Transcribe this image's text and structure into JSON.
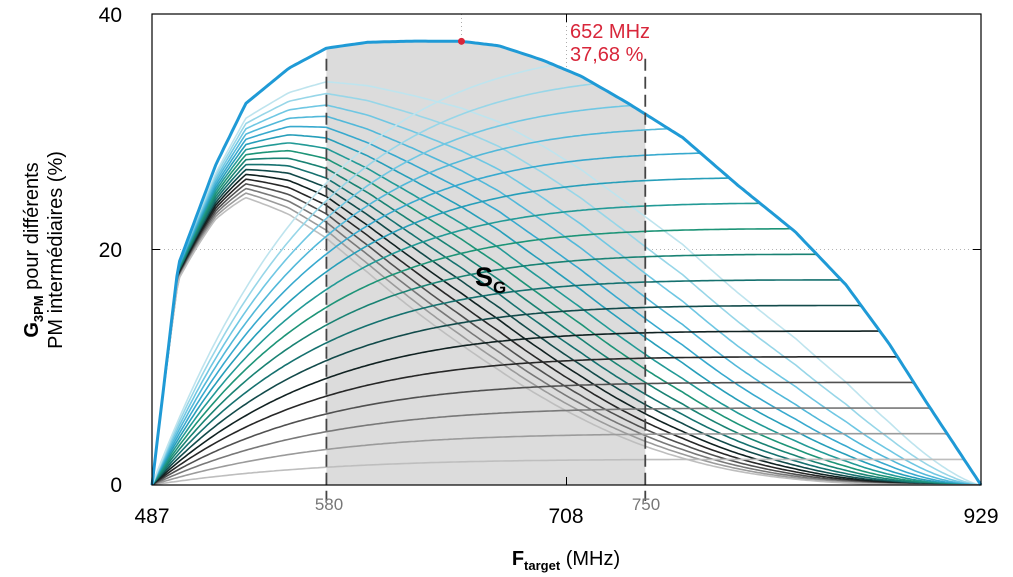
{
  "chart_data": {
    "type": "line",
    "ylabel": {
      "main": "G",
      "sub": "3PM",
      "line1_rest": " pour différents",
      "line2": "PM intermédiaires (%)"
    },
    "xlabel": {
      "main": "F",
      "sub": "target",
      "rest": " (MHz)"
    },
    "xlim": [
      487,
      929
    ],
    "ylim": [
      0,
      40
    ],
    "xticks": [
      "487",
      "708",
      "929"
    ],
    "xticks_values": [
      487,
      708,
      929
    ],
    "xticks_secondary": [
      "580",
      "750"
    ],
    "xticks_secondary_values": [
      580,
      750
    ],
    "yticks": [
      "0",
      "20",
      "40"
    ],
    "yticks_values": [
      0,
      20,
      40
    ],
    "grid": "dotted",
    "shaded_region": {
      "x_range": [
        580,
        750
      ],
      "label_main": "S",
      "label_sub": "G"
    },
    "peak": {
      "x": 652,
      "y": 37.68,
      "label_freq": "652 MHz",
      "label_value": "37,68 %",
      "color": "#d8263a"
    },
    "envelope": {
      "x": [
        487,
        501,
        521,
        537,
        560,
        580,
        602,
        627,
        652,
        672,
        695,
        716,
        740,
        770,
        799,
        830,
        857,
        880,
        900,
        929
      ],
      "y": [
        0,
        18.7,
        27.2,
        32.4,
        35.4,
        37.1,
        37.6,
        37.7,
        37.68,
        37.3,
        36.1,
        34.7,
        32.5,
        29.5,
        25.5,
        21.5,
        17.0,
        12.0,
        7.0,
        0
      ]
    },
    "family_a_count": 17,
    "family_b_count": 17,
    "colors": {
      "envelope": "#1f9ad6",
      "shade": "#dcdcdc",
      "dashed": "#444444",
      "peak": "#d8263a",
      "axes": "#000000"
    }
  }
}
